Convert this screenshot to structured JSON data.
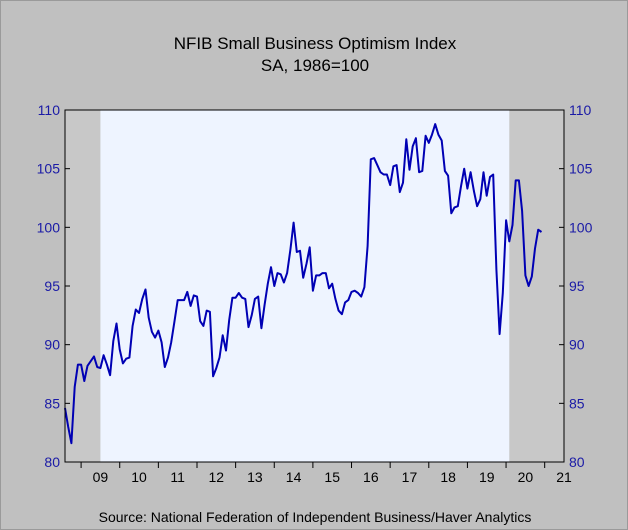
{
  "chart_data": {
    "type": "line",
    "title": "NFIB Small Business Optimism Index",
    "subtitle": "SA, 1986=100",
    "source": "Source:  National Federation of Independent Business/Haver Analytics",
    "ylim": [
      80,
      110
    ],
    "yticks": [
      110,
      105,
      100,
      95,
      90,
      85,
      80
    ],
    "xlim": [
      2008.5833,
      2021.5
    ],
    "xticks": [
      {
        "label": "09",
        "year": 2009
      },
      {
        "label": "10",
        "year": 2010
      },
      {
        "label": "11",
        "year": 2011
      },
      {
        "label": "12",
        "year": 2012
      },
      {
        "label": "13",
        "year": 2013
      },
      {
        "label": "14",
        "year": 2014
      },
      {
        "label": "15",
        "year": 2015
      },
      {
        "label": "16",
        "year": 2016
      },
      {
        "label": "17",
        "year": 2017
      },
      {
        "label": "18",
        "year": 2018
      },
      {
        "label": "19",
        "year": 2019
      },
      {
        "label": "20",
        "year": 2020
      },
      {
        "label": "21",
        "year": 2021
      }
    ],
    "recessions": [
      {
        "start": "2008-08",
        "end": "2009-06"
      },
      {
        "start": "2020-02",
        "end": "2021-06"
      }
    ],
    "colors": {
      "line": "#0000b4",
      "plot_bg": "#eef4ff",
      "recession": "#c8c8c8",
      "axis_text": "#1a1aa6"
    },
    "series": [
      {
        "start": "2008-08",
        "values": [
          84.6,
          83.0,
          81.6,
          86.4,
          88.3,
          88.3,
          86.9,
          88.2,
          88.6,
          89.0,
          88.1,
          88.0,
          89.1,
          88.3,
          87.4,
          90.3,
          91.8,
          89.6,
          88.4,
          88.8,
          88.9,
          91.6,
          93.0,
          92.7,
          93.9,
          94.7,
          92.3,
          91.1,
          90.6,
          91.2,
          90.2,
          88.1,
          88.9,
          90.2,
          92.0,
          93.8,
          93.8,
          93.8,
          94.5,
          93.3,
          94.2,
          94.1,
          92.0,
          91.6,
          92.9,
          92.8,
          87.3,
          88.0,
          88.9,
          90.8,
          89.5,
          92.1,
          94.0,
          94.0,
          94.4,
          94.0,
          93.9,
          91.5,
          92.5,
          93.9,
          94.1,
          91.4,
          93.4,
          95.2,
          96.6,
          95.0,
          96.1,
          96.0,
          95.3,
          96.1,
          98.1,
          100.4,
          97.9,
          98.0,
          95.7,
          96.9,
          98.3,
          94.6,
          95.9,
          95.9,
          96.1,
          96.1,
          94.8,
          95.2,
          93.9,
          92.9,
          92.6,
          93.6,
          93.8,
          94.5,
          94.6,
          94.4,
          94.1,
          94.9,
          98.4,
          105.8,
          105.9,
          105.3,
          104.7,
          104.5,
          104.5,
          103.6,
          105.2,
          105.3,
          103.0,
          103.8,
          107.5,
          104.9,
          106.9,
          107.6,
          104.7,
          104.8,
          107.8,
          107.2,
          107.9,
          108.8,
          107.9,
          107.4,
          104.8,
          104.4,
          101.2,
          101.7,
          101.8,
          103.5,
          105.0,
          103.3,
          104.7,
          103.1,
          101.8,
          102.4,
          104.7,
          102.7,
          104.3,
          104.5,
          96.4,
          90.9,
          94.4,
          100.6,
          98.8,
          100.2,
          104.0,
          104.0,
          101.4,
          95.9,
          95.0,
          95.8,
          98.2,
          99.8,
          99.6
        ]
      }
    ]
  }
}
